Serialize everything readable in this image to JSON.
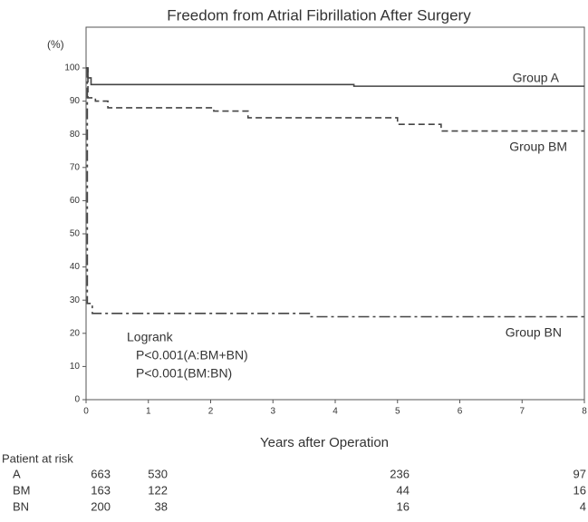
{
  "chart_data": {
    "type": "line",
    "title": "Freedom from Atrial Fibrillation After Surgery",
    "y_label": "(%)",
    "x_label": "Years after Operation",
    "xlim": [
      0,
      8
    ],
    "xticks": [
      0,
      1,
      2,
      3,
      4,
      5,
      6,
      7,
      8
    ],
    "ylim": [
      0,
      100
    ],
    "yticks": [
      0,
      10,
      20,
      30,
      40,
      50,
      60,
      70,
      80,
      90,
      100
    ],
    "series": [
      {
        "name": "Group A",
        "color": "#444444",
        "style": "solid",
        "x": [
          0,
          0.03,
          0.03,
          0.08,
          0.08,
          4.3,
          4.3,
          8
        ],
        "values": [
          100,
          100,
          97,
          97,
          95,
          95,
          94.5,
          94.5
        ]
      },
      {
        "name": "Group BM",
        "color": "#444444",
        "style": "dashed",
        "x": [
          0,
          0.03,
          0.03,
          0.15,
          0.15,
          0.35,
          0.35,
          2.05,
          2.05,
          2.6,
          2.6,
          5,
          5,
          5.7,
          5.7,
          8
        ],
        "values": [
          100,
          100,
          91,
          91,
          90,
          90,
          88,
          88,
          87,
          87,
          85,
          85,
          83,
          83,
          81,
          81
        ]
      },
      {
        "name": "Group BN",
        "color": "#444444",
        "style": "dashdot",
        "x": [
          0,
          0.02,
          0.02,
          0.1,
          0.1,
          3.6,
          3.6,
          8
        ],
        "values": [
          100,
          100,
          29,
          29,
          26,
          26,
          25,
          25
        ]
      }
    ],
    "annotations": [
      "Logrank",
      "P<0.001(A:BM+BN)",
      "P<0.001(BM:BN)"
    ],
    "risk_table": {
      "title": "Patient at risk",
      "rows": [
        {
          "name": "A",
          "values": [
            663,
            530,
            236,
            97
          ]
        },
        {
          "name": "BM",
          "values": [
            163,
            122,
            44,
            16
          ]
        },
        {
          "name": "BN",
          "values": [
            200,
            38,
            16,
            4
          ]
        }
      ]
    }
  }
}
